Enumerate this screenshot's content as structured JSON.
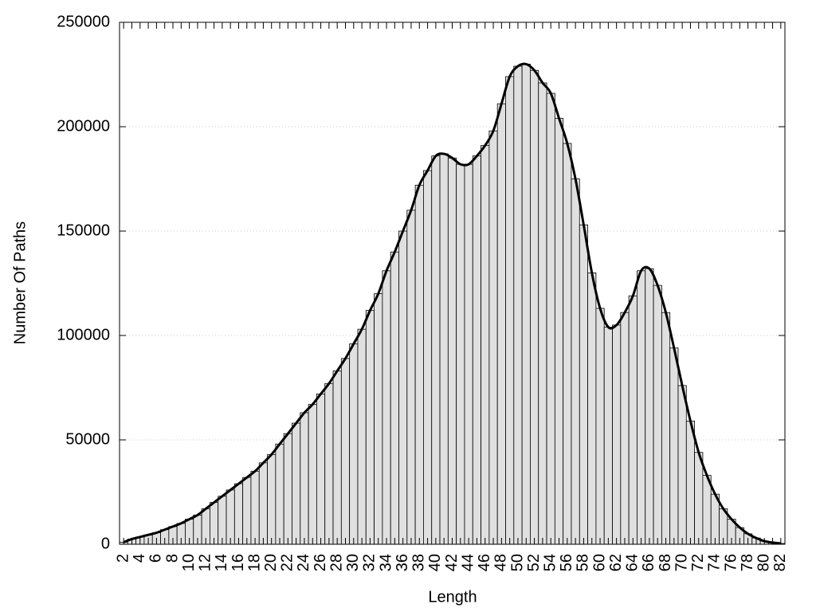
{
  "chart_data": {
    "type": "bar",
    "x_label": "Length",
    "y_label": "Number Of Paths",
    "categories": [
      "2",
      null,
      "4",
      null,
      "6",
      null,
      "8",
      null,
      "10",
      null,
      "12",
      null,
      "14",
      null,
      "16",
      null,
      "18",
      null,
      "20",
      null,
      "22",
      null,
      "24",
      null,
      "26",
      null,
      "28",
      null,
      "30",
      null,
      "32",
      null,
      "34",
      null,
      "36",
      null,
      "38",
      null,
      "40",
      null,
      "42",
      null,
      "44",
      null,
      "46",
      null,
      "48",
      null,
      "50",
      null,
      "52",
      null,
      "54",
      null,
      "56",
      null,
      "58",
      null,
      "60",
      null,
      "62",
      null,
      "64",
      null,
      "66",
      null,
      "68",
      null,
      "70",
      null,
      "72",
      null,
      "74",
      null,
      "76",
      null,
      "78",
      null,
      "80",
      null,
      "82"
    ],
    "values": [
      1000,
      2500,
      3500,
      4500,
      5500,
      7000,
      8500,
      10000,
      12000,
      14000,
      17000,
      20000,
      23000,
      26000,
      29000,
      32000,
      35000,
      39000,
      43000,
      48000,
      53000,
      58000,
      63000,
      67000,
      72000,
      77000,
      83000,
      89000,
      96000,
      103000,
      112000,
      120000,
      131000,
      140000,
      150000,
      160000,
      172000,
      179000,
      186000,
      187000,
      185000,
      182000,
      182000,
      186000,
      191000,
      198000,
      211000,
      224000,
      229000,
      230000,
      227000,
      221000,
      216000,
      204000,
      192000,
      175000,
      153000,
      130000,
      113000,
      104000,
      105000,
      111000,
      119000,
      131000,
      132000,
      124000,
      111000,
      94000,
      76000,
      59000,
      44000,
      33000,
      24000,
      17000,
      12000,
      8000,
      5000,
      3000,
      1500,
      800,
      400
    ],
    "color": "#e0e0e0",
    "line_color": "#000000",
    "smooth_line": true,
    "ylim": [
      0,
      250000
    ],
    "yticks": [
      0,
      50000,
      100000,
      150000,
      200000,
      250000
    ],
    "grid": true
  }
}
